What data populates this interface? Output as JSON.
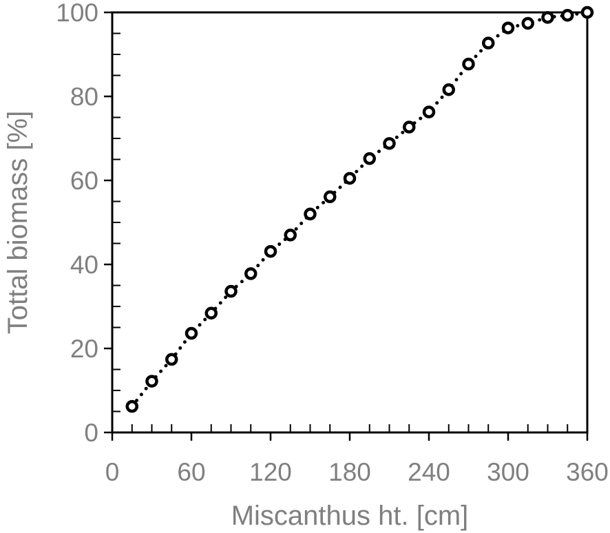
{
  "chart_data": {
    "type": "scatter",
    "xlabel": "Miscanthus ht. [cm]",
    "ylabel": "Tottal biomass [%]",
    "xlim": [
      0,
      360
    ],
    "ylim": [
      0,
      100
    ],
    "x_ticks": [
      0,
      60,
      120,
      180,
      240,
      300,
      360
    ],
    "y_ticks": [
      0,
      20,
      40,
      60,
      80,
      100
    ],
    "x_tick_labels": [
      "0",
      "60",
      "120",
      "180",
      "240",
      "300",
      "360"
    ],
    "y_tick_labels": [
      "0",
      "20",
      "40",
      "60",
      "80",
      "100"
    ],
    "grid": false,
    "legend": "none",
    "marker": "open-circle",
    "line_style": "dotted",
    "series": [
      {
        "x": [
          15,
          30,
          45,
          60,
          75,
          90,
          105,
          120,
          135,
          150,
          165,
          180,
          195,
          210,
          225,
          240,
          255,
          270,
          285,
          300,
          315,
          330,
          345,
          360
        ],
        "y": [
          6.2,
          12.2,
          17.4,
          23.6,
          28.4,
          33.6,
          37.8,
          43.1,
          47.0,
          52.0,
          56.1,
          60.5,
          65.2,
          68.8,
          72.7,
          76.3,
          81.6,
          87.7,
          92.7,
          96.3,
          97.4,
          98.8,
          99.3,
          100
        ]
      }
    ],
    "colors": {
      "marker": "#000000",
      "axis": "#000000",
      "text": "#7f7f7f"
    }
  }
}
